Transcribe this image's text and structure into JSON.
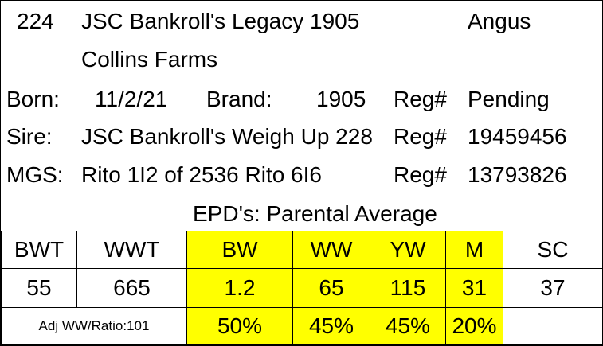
{
  "header": {
    "number": "224",
    "name": "JSC Bankroll's Legacy 1905",
    "breed": "Angus",
    "owner": "Collins Farms"
  },
  "born": {
    "label": "Born:",
    "value": "11/2/21"
  },
  "brand": {
    "label": "Brand:",
    "value": "1905"
  },
  "reg": {
    "label": "Reg#",
    "value": "Pending"
  },
  "sire": {
    "label": "Sire:",
    "name": "JSC Bankroll's Weigh Up 228",
    "reg_label": "Reg#",
    "reg_value": "19459456"
  },
  "mgs": {
    "label": "MGS:",
    "name": "Rito 1I2 of 2536 Rito 6I6",
    "reg_label": "Reg#",
    "reg_value": "13793826"
  },
  "epd_title": "EPD's: Parental Average",
  "table": {
    "headers": [
      "BWT",
      "WWT",
      "BW",
      "WW",
      "YW",
      "M",
      "SC"
    ],
    "values": [
      "55",
      "665",
      "1.2",
      "65",
      "115",
      "31",
      "37"
    ],
    "ratio_label": "Adj WW/Ratio:101",
    "percents": [
      "50%",
      "45%",
      "45%",
      "20%",
      ""
    ]
  },
  "colors": {
    "highlight": "#ffff00",
    "border": "#000000"
  }
}
